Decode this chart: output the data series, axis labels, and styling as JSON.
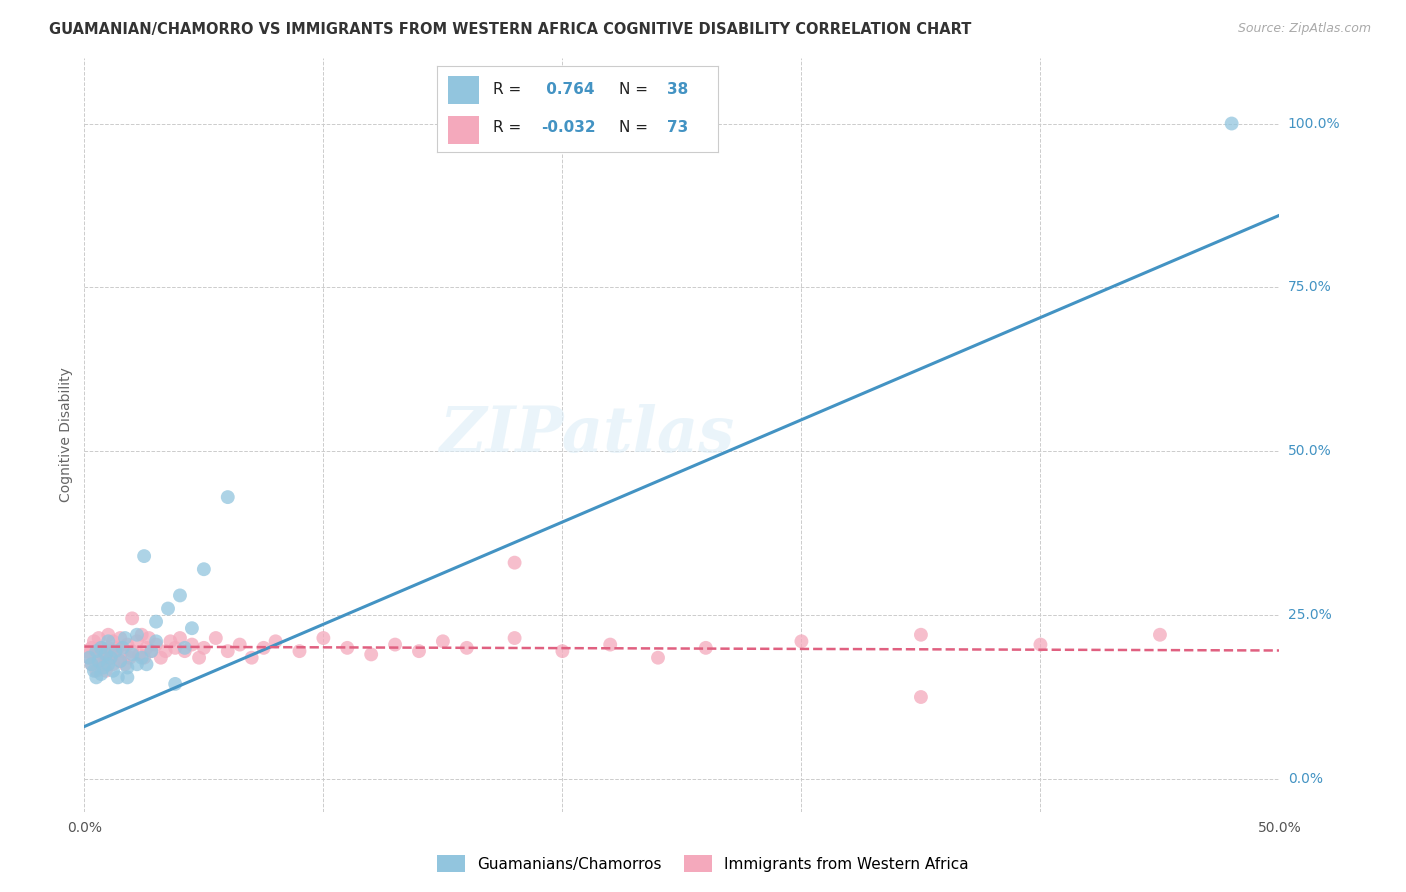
{
  "title": "GUAMANIAN/CHAMORRO VS IMMIGRANTS FROM WESTERN AFRICA COGNITIVE DISABILITY CORRELATION CHART",
  "source": "Source: ZipAtlas.com",
  "ylabel": "Cognitive Disability",
  "xlim": [
    0.0,
    0.5
  ],
  "ylim": [
    -0.05,
    1.1
  ],
  "xticks": [
    0.0,
    0.1,
    0.2,
    0.3,
    0.4,
    0.5
  ],
  "xticklabels": [
    "0.0%",
    "",
    "",
    "",
    "",
    "50.0%"
  ],
  "yticks": [
    0.0,
    0.25,
    0.5,
    0.75,
    1.0
  ],
  "yticklabels": [
    "0.0%",
    "25.0%",
    "50.0%",
    "75.0%",
    "100.0%"
  ],
  "background_color": "#ffffff",
  "plot_bg_color": "#ffffff",
  "grid_color": "#cccccc",
  "blue_color": "#92c5de",
  "pink_color": "#f4a9bc",
  "blue_line_color": "#4393c3",
  "pink_line_color": "#e06080",
  "R_blue": 0.764,
  "N_blue": 38,
  "R_pink": -0.032,
  "N_pink": 73,
  "legend_label_blue": "Guamanians/Chamorros",
  "legend_label_pink": "Immigrants from Western Africa",
  "watermark": "ZIPatlas",
  "blue_scatter_x": [
    0.002,
    0.003,
    0.004,
    0.005,
    0.005,
    0.006,
    0.007,
    0.007,
    0.008,
    0.009,
    0.01,
    0.01,
    0.011,
    0.012,
    0.013,
    0.014,
    0.015,
    0.016,
    0.017,
    0.018,
    0.02,
    0.022,
    0.024,
    0.026,
    0.028,
    0.03,
    0.035,
    0.04,
    0.045,
    0.025,
    0.018,
    0.022,
    0.03,
    0.038,
    0.042,
    0.05,
    0.06,
    0.48
  ],
  "blue_scatter_y": [
    0.185,
    0.175,
    0.165,
    0.195,
    0.155,
    0.18,
    0.2,
    0.16,
    0.17,
    0.19,
    0.175,
    0.21,
    0.185,
    0.165,
    0.195,
    0.155,
    0.18,
    0.2,
    0.215,
    0.17,
    0.19,
    0.22,
    0.185,
    0.175,
    0.195,
    0.24,
    0.26,
    0.28,
    0.23,
    0.34,
    0.155,
    0.175,
    0.21,
    0.145,
    0.2,
    0.32,
    0.43,
    1.0
  ],
  "pink_scatter_x": [
    0.001,
    0.002,
    0.003,
    0.003,
    0.004,
    0.005,
    0.005,
    0.006,
    0.006,
    0.007,
    0.007,
    0.008,
    0.008,
    0.009,
    0.009,
    0.01,
    0.01,
    0.011,
    0.011,
    0.012,
    0.012,
    0.013,
    0.014,
    0.015,
    0.015,
    0.016,
    0.017,
    0.018,
    0.019,
    0.02,
    0.02,
    0.022,
    0.023,
    0.024,
    0.025,
    0.026,
    0.027,
    0.028,
    0.03,
    0.032,
    0.034,
    0.036,
    0.038,
    0.04,
    0.042,
    0.045,
    0.048,
    0.05,
    0.055,
    0.06,
    0.065,
    0.07,
    0.075,
    0.08,
    0.09,
    0.1,
    0.11,
    0.12,
    0.13,
    0.14,
    0.15,
    0.16,
    0.18,
    0.2,
    0.22,
    0.24,
    0.26,
    0.3,
    0.35,
    0.4,
    0.18,
    0.35,
    0.45
  ],
  "pink_scatter_y": [
    0.195,
    0.185,
    0.2,
    0.175,
    0.21,
    0.185,
    0.165,
    0.195,
    0.215,
    0.18,
    0.2,
    0.175,
    0.195,
    0.185,
    0.165,
    0.2,
    0.22,
    0.185,
    0.195,
    0.175,
    0.21,
    0.19,
    0.2,
    0.18,
    0.215,
    0.195,
    0.175,
    0.205,
    0.185,
    0.195,
    0.245,
    0.21,
    0.19,
    0.22,
    0.185,
    0.2,
    0.215,
    0.195,
    0.205,
    0.185,
    0.195,
    0.21,
    0.2,
    0.215,
    0.195,
    0.205,
    0.185,
    0.2,
    0.215,
    0.195,
    0.205,
    0.185,
    0.2,
    0.21,
    0.195,
    0.215,
    0.2,
    0.19,
    0.205,
    0.195,
    0.21,
    0.2,
    0.215,
    0.195,
    0.205,
    0.185,
    0.2,
    0.21,
    0.22,
    0.205,
    0.33,
    0.125,
    0.22
  ],
  "blue_trend_x0": 0.0,
  "blue_trend_y0": 0.08,
  "blue_trend_x1": 0.5,
  "blue_trend_y1": 0.86,
  "pink_trend_x0": 0.0,
  "pink_trend_y0": 0.202,
  "pink_trend_x1": 0.5,
  "pink_trend_y1": 0.196
}
